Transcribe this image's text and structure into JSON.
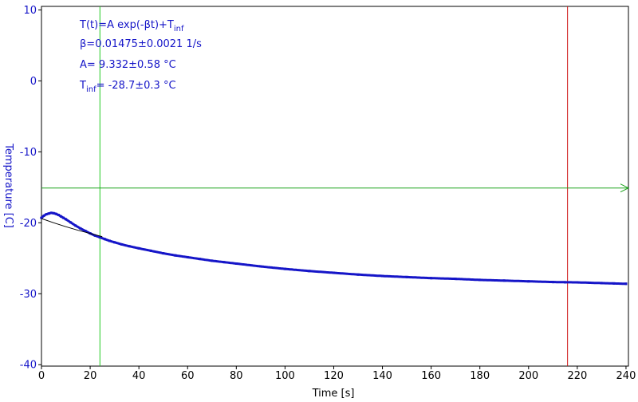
{
  "chart_data": {
    "type": "scatter",
    "xlabel": "Time [s]",
    "ylabel": "Temperature [C]",
    "xlim": [
      0,
      241
    ],
    "ylim": [
      -40.2,
      10.5
    ],
    "x_ticks": [
      0,
      20,
      40,
      60,
      80,
      100,
      120,
      140,
      160,
      180,
      200,
      220,
      240
    ],
    "x_tick_labels": [
      "0",
      "20",
      "40",
      "60",
      "80",
      "100",
      "120",
      "140",
      "160",
      "180",
      "200",
      "220",
      "240"
    ],
    "y_ticks": [
      10,
      0,
      -10,
      -20,
      -30,
      -40
    ],
    "y_tick_labels": [
      "10",
      "0",
      "-10",
      "-20",
      "-30",
      "-40"
    ],
    "grid": false,
    "fit_annotation": {
      "line1_main": "T(t)=A exp(-βt)+T",
      "line1_sub": "inf",
      "line2": "β=0.01475±0.0021 1/s",
      "line3": "A= 9.332±0.58 °C",
      "line4_main": "T",
      "line4_sub": "inf",
      "line4_rest": "= -28.7±0.3 °C"
    },
    "series": [
      {
        "x": [
          0,
          1,
          2,
          3,
          4,
          5,
          6,
          7,
          8,
          9,
          10,
          12,
          14,
          16,
          18,
          20,
          22,
          24,
          26,
          28,
          30,
          33,
          36,
          40,
          45,
          50,
          55,
          60,
          65,
          70,
          75,
          80,
          90,
          100,
          110,
          120,
          130,
          140,
          150,
          160,
          170,
          180,
          190,
          200,
          210,
          215,
          220,
          225,
          230,
          235,
          240
        ],
        "y": [
          -19.3,
          -19.0,
          -18.8,
          -18.7,
          -18.6,
          -18.65,
          -18.75,
          -18.9,
          -19.1,
          -19.3,
          -19.5,
          -19.95,
          -20.4,
          -20.8,
          -21.15,
          -21.5,
          -21.8,
          -22.05,
          -22.3,
          -22.55,
          -22.75,
          -23.05,
          -23.3,
          -23.6,
          -23.95,
          -24.3,
          -24.6,
          -24.85,
          -25.1,
          -25.35,
          -25.55,
          -25.75,
          -26.15,
          -26.5,
          -26.8,
          -27.05,
          -27.3,
          -27.5,
          -27.65,
          -27.8,
          -27.9,
          -28.05,
          -28.15,
          -28.25,
          -28.35,
          -28.38,
          -28.4,
          -28.45,
          -28.5,
          -28.55,
          -28.6
        ],
        "color": "#1515c8"
      },
      {
        "type": "line",
        "x": [
          0,
          5,
          10,
          15,
          20,
          25
        ],
        "y": [
          -19.4,
          -20.0,
          -20.55,
          -21.05,
          -21.5,
          -21.95
        ],
        "color": "#000000"
      }
    ],
    "cursors": {
      "vertical_green_x": 24,
      "vertical_red_x": 216,
      "horizontal_green_y": -15.1
    },
    "colors": {
      "data": "#1515c8",
      "fit": "#000000",
      "cursor_green": "#1aa21a",
      "cursor_vertical_green": "#22cc22",
      "cursor_red": "#cc1111",
      "axis": "#000000"
    }
  }
}
